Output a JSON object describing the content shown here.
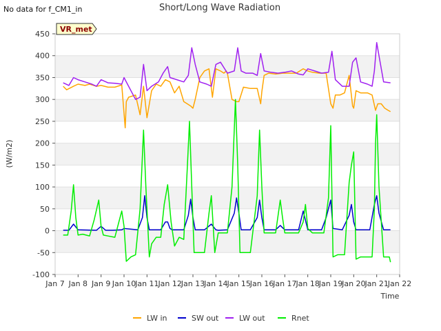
{
  "status_text": "No data for f_CM1_in",
  "chart_data": {
    "type": "line",
    "title": "Short/Long Wave Radiation",
    "xlabel": "Time",
    "ylabel": "(W/m2)",
    "badge": "VR_met",
    "ylim": [
      -100,
      450
    ],
    "yticks": [
      -100,
      -50,
      0,
      50,
      100,
      150,
      200,
      250,
      300,
      350,
      400,
      450
    ],
    "xlim": [
      7,
      22
    ],
    "xticks": [
      {
        "x": 7,
        "label": "Jan 7"
      },
      {
        "x": 8,
        "label": "Jan 8"
      },
      {
        "x": 9,
        "label": "Jan 9"
      },
      {
        "x": 10,
        "label": "Jan 10"
      },
      {
        "x": 11,
        "label": "Jan 11"
      },
      {
        "x": 12,
        "label": "Jan 12"
      },
      {
        "x": 13,
        "label": "Jan 13"
      },
      {
        "x": 14,
        "label": "Jan 14"
      },
      {
        "x": 15,
        "label": "Jan 15"
      },
      {
        "x": 16,
        "label": "Jan 16"
      },
      {
        "x": 17,
        "label": "Jan 17"
      },
      {
        "x": 18,
        "label": "Jan 18"
      },
      {
        "x": 19,
        "label": "Jan 19"
      },
      {
        "x": 20,
        "label": "Jan 20"
      },
      {
        "x": 21,
        "label": "Jan 21"
      },
      {
        "x": 22,
        "label": "Jan 22"
      }
    ],
    "grid": "horizontal bands",
    "legend_position": "bottom",
    "series": [
      {
        "name": "LW in",
        "color": "#FFA500",
        "x": [
          7.35,
          7.5,
          7.8,
          8.0,
          8.3,
          8.5,
          8.8,
          9.0,
          9.3,
          9.6,
          9.9,
          10.05,
          10.1,
          10.2,
          10.5,
          10.7,
          10.85,
          11.0,
          11.2,
          11.4,
          11.6,
          11.8,
          12.0,
          12.2,
          12.4,
          12.6,
          12.75,
          12.9,
          13.0,
          13.1,
          13.3,
          13.5,
          13.7,
          13.85,
          14.0,
          14.2,
          14.35,
          14.45,
          14.5,
          14.7,
          14.9,
          15.0,
          15.2,
          15.5,
          15.8,
          15.95,
          16.0,
          16.1,
          16.3,
          16.6,
          16.9,
          17.2,
          17.5,
          17.8,
          18.0,
          18.2,
          18.5,
          18.8,
          19.0,
          19.1,
          19.2,
          19.4,
          19.6,
          19.8,
          19.95,
          20.0,
          20.1,
          20.3,
          20.6,
          20.8,
          20.95,
          21.05,
          21.2,
          21.35,
          21.5,
          21.6
        ],
        "values": [
          330,
          322,
          330,
          335,
          332,
          335,
          330,
          332,
          328,
          328,
          333,
          235,
          295,
          305,
          310,
          265,
          330,
          258,
          320,
          335,
          330,
          345,
          340,
          315,
          330,
          295,
          290,
          285,
          280,
          300,
          350,
          365,
          370,
          305,
          370,
          365,
          360,
          365,
          360,
          300,
          295,
          295,
          328,
          325,
          325,
          290,
          318,
          355,
          360,
          358,
          360,
          360,
          360,
          370,
          365,
          362,
          360,
          360,
          290,
          280,
          310,
          310,
          315,
          355,
          285,
          280,
          320,
          315,
          315,
          310,
          275,
          290,
          290,
          280,
          275,
          272
        ]
      },
      {
        "name": "SW out",
        "color": "#0000CD",
        "x": [
          7.35,
          7.6,
          7.8,
          8.0,
          8.8,
          9.0,
          9.2,
          9.5,
          9.9,
          10.0,
          10.6,
          10.8,
          10.9,
          11.0,
          11.1,
          11.6,
          11.8,
          11.9,
          12.0,
          12.1,
          12.6,
          12.8,
          12.9,
          13.0,
          13.1,
          13.5,
          13.8,
          14.0,
          14.1,
          14.5,
          14.8,
          14.9,
          15.0,
          15.1,
          15.5,
          15.8,
          15.9,
          16.0,
          16.1,
          16.6,
          16.8,
          17.0,
          17.6,
          17.8,
          18.0,
          18.6,
          18.8,
          19.0,
          19.1,
          19.5,
          19.8,
          19.9,
          20.0,
          20.1,
          20.3,
          20.5,
          20.7,
          20.9,
          21.0,
          21.1,
          21.3,
          21.6
        ],
        "values": [
          1,
          1,
          15,
          2,
          1,
          10,
          1,
          1,
          2,
          5,
          2,
          30,
          80,
          30,
          2,
          2,
          20,
          20,
          5,
          2,
          2,
          35,
          72,
          30,
          2,
          2,
          15,
          2,
          1,
          2,
          40,
          75,
          40,
          2,
          2,
          30,
          70,
          30,
          2,
          2,
          12,
          2,
          2,
          45,
          2,
          2,
          30,
          70,
          5,
          2,
          35,
          60,
          20,
          2,
          2,
          2,
          2,
          60,
          80,
          40,
          2,
          2
        ]
      },
      {
        "name": "LW out",
        "color": "#A020F0",
        "x": [
          7.35,
          7.6,
          7.8,
          8.0,
          8.3,
          8.6,
          8.8,
          9.0,
          9.3,
          9.6,
          9.9,
          10.0,
          10.5,
          10.7,
          10.85,
          11.0,
          11.2,
          11.5,
          11.7,
          11.9,
          12.0,
          12.3,
          12.6,
          12.8,
          12.95,
          13.1,
          13.3,
          13.6,
          13.8,
          14.0,
          14.2,
          14.5,
          14.8,
          14.95,
          15.1,
          15.3,
          15.6,
          15.8,
          15.95,
          16.1,
          16.4,
          16.7,
          17.0,
          17.3,
          17.6,
          17.8,
          18.0,
          18.3,
          18.6,
          18.9,
          19.05,
          19.2,
          19.5,
          19.8,
          19.95,
          20.1,
          20.3,
          20.6,
          20.8,
          20.9,
          21.0,
          21.1,
          21.3,
          21.6
        ],
        "values": [
          338,
          332,
          350,
          345,
          340,
          335,
          330,
          345,
          338,
          337,
          335,
          350,
          300,
          305,
          380,
          320,
          330,
          340,
          360,
          375,
          350,
          345,
          340,
          355,
          418,
          380,
          340,
          335,
          330,
          380,
          385,
          360,
          365,
          418,
          365,
          360,
          360,
          355,
          405,
          365,
          362,
          360,
          362,
          365,
          358,
          356,
          370,
          365,
          360,
          362,
          410,
          345,
          330,
          330,
          385,
          395,
          340,
          335,
          330,
          365,
          430,
          400,
          340,
          338
        ]
      },
      {
        "name": "Rnet",
        "color": "#00EE00",
        "x": [
          7.35,
          7.55,
          7.7,
          7.8,
          7.9,
          8.0,
          8.2,
          8.5,
          8.7,
          8.9,
          9.0,
          9.1,
          9.3,
          9.6,
          9.9,
          10.0,
          10.1,
          10.3,
          10.5,
          10.7,
          10.85,
          10.95,
          11.1,
          11.2,
          11.4,
          11.6,
          11.75,
          11.9,
          12.05,
          12.2,
          12.4,
          12.6,
          12.75,
          12.85,
          12.95,
          13.05,
          13.2,
          13.5,
          13.7,
          13.8,
          13.95,
          14.1,
          14.3,
          14.5,
          14.7,
          14.85,
          14.95,
          15.05,
          15.2,
          15.5,
          15.8,
          15.9,
          16.0,
          16.1,
          16.3,
          16.6,
          16.8,
          16.9,
          17.0,
          17.2,
          17.6,
          17.8,
          17.9,
          18.0,
          18.2,
          18.5,
          18.7,
          18.9,
          19.0,
          19.1,
          19.3,
          19.6,
          19.8,
          19.9,
          20.0,
          20.1,
          20.3,
          20.6,
          20.8,
          20.9,
          20.95,
          21.0,
          21.1,
          21.3,
          21.55,
          21.6
        ],
        "values": [
          -10,
          -10,
          45,
          105,
          30,
          -10,
          -8,
          -12,
          25,
          70,
          10,
          -10,
          -12,
          -15,
          45,
          10,
          -70,
          -60,
          -55,
          50,
          230,
          100,
          -60,
          -30,
          -15,
          -15,
          60,
          105,
          20,
          -35,
          -15,
          -20,
          140,
          250,
          100,
          -50,
          -50,
          -50,
          40,
          80,
          -50,
          -5,
          -5,
          -5,
          100,
          300,
          150,
          -50,
          -50,
          -50,
          80,
          230,
          100,
          -5,
          -5,
          -5,
          70,
          30,
          -5,
          -5,
          -5,
          20,
          60,
          5,
          -5,
          -5,
          -5,
          75,
          240,
          -60,
          -55,
          -55,
          110,
          150,
          180,
          -65,
          -60,
          -60,
          -60,
          50,
          200,
          265,
          100,
          -60,
          -60,
          -72
        ]
      }
    ]
  }
}
